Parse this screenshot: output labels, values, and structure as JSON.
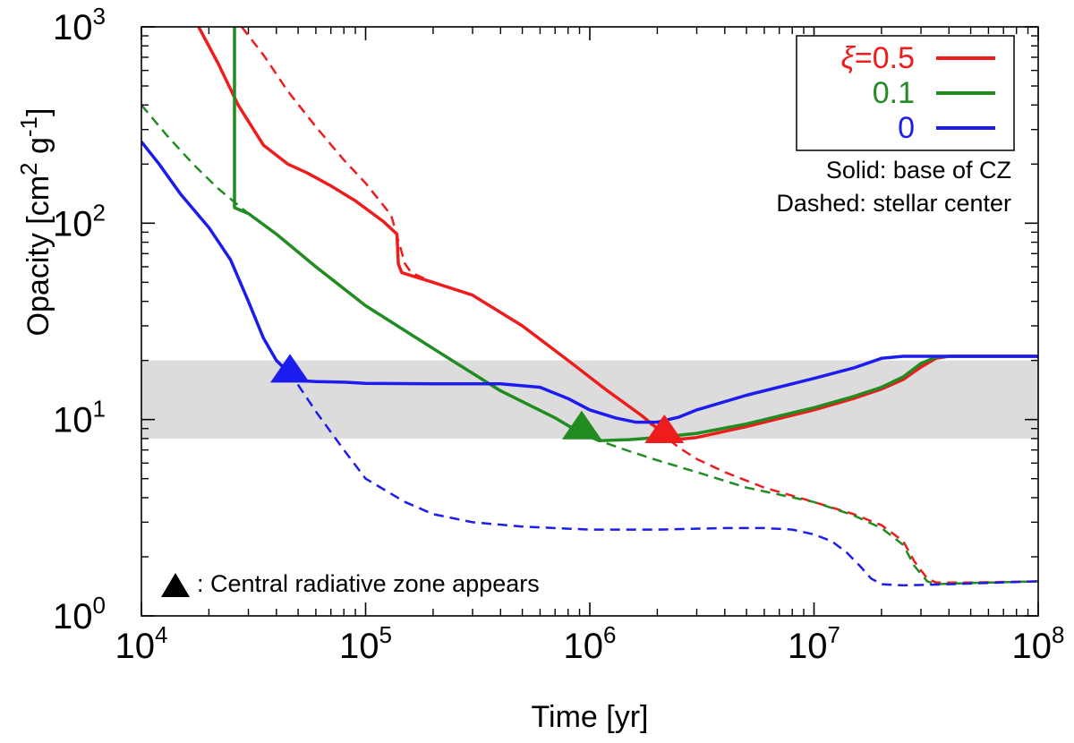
{
  "chart_data": {
    "type": "line",
    "xlabel": "Time [yr]",
    "ylabel_main": "Opacity [cm",
    "ylabel_sup1": "2",
    "ylabel_mid": " g",
    "ylabel_sup2": "-1",
    "ylabel_end": "]",
    "xscale": "log",
    "yscale": "log",
    "xlim": [
      10000,
      100000000
    ],
    "ylim": [
      1,
      1000
    ],
    "grid": false,
    "legend_position": "top-right",
    "x_ticks": [
      {
        "base": "10",
        "exp": "4",
        "value": 10000
      },
      {
        "base": "10",
        "exp": "5",
        "value": 100000
      },
      {
        "base": "10",
        "exp": "6",
        "value": 1000000
      },
      {
        "base": "10",
        "exp": "7",
        "value": 10000000
      },
      {
        "base": "10",
        "exp": "8",
        "value": 100000000
      }
    ],
    "y_ticks": [
      {
        "base": "10",
        "exp": "0",
        "value": 1
      },
      {
        "base": "10",
        "exp": "1",
        "value": 10
      },
      {
        "base": "10",
        "exp": "2",
        "value": 100
      },
      {
        "base": "10",
        "exp": "3",
        "value": 1000
      }
    ],
    "shaded_band": {
      "y0": 8,
      "y1": 20,
      "color": "#dcdcdc"
    },
    "legend": {
      "entries": [
        {
          "symbol": "ξ",
          "label": "=0.5",
          "color": "#ee1c1c"
        },
        {
          "symbol": "",
          "label": "0.1",
          "color": "#228b22"
        },
        {
          "symbol": "",
          "label": "0",
          "color": "#1c1cee"
        }
      ],
      "note_solid": "Solid: base of CZ",
      "note_dashed": "Dashed: stellar center"
    },
    "marker_note": ": Central radiative zone appears",
    "series": [
      {
        "key": "red-solid",
        "color": "#ee1c1c",
        "style": "solid",
        "x": [
          18000,
          22000,
          27000,
          35000,
          45000,
          55000,
          70000,
          90000,
          120000,
          138000,
          140000,
          145000,
          200000,
          300000,
          500000,
          800000,
          1200000,
          1700000,
          2100000,
          2400000,
          3000000,
          5000000,
          10000000,
          15000000,
          20000000,
          25000000,
          30000000,
          35000000,
          40000000,
          100000000
        ],
        "y": [
          1000,
          650,
          400,
          250,
          200,
          180,
          155,
          130,
          102,
          88,
          62,
          56,
          50,
          43,
          30,
          20,
          14,
          10.5,
          8.6,
          7.9,
          8.1,
          9.2,
          11.2,
          12.8,
          14.3,
          16,
          18.5,
          20.5,
          21,
          21
        ]
      },
      {
        "key": "red-dashed",
        "color": "#ee1c1c",
        "style": "dashed",
        "x": [
          28000,
          35000,
          45000,
          60000,
          80000,
          100000,
          130000,
          150000,
          160000,
          200000,
          300000,
          500000,
          800000,
          1200000,
          1700000,
          2100000,
          2500000,
          3000000,
          4000000,
          6000000,
          10000000,
          15000000,
          20000000,
          25000000,
          28000000,
          32000000,
          35000000,
          50000000,
          100000000
        ],
        "y": [
          1000,
          720,
          470,
          310,
          210,
          160,
          110,
          62,
          56,
          50,
          43,
          30,
          20,
          14,
          10.5,
          8.4,
          7.2,
          6.3,
          5.4,
          4.5,
          3.8,
          3.3,
          2.9,
          2.4,
          1.9,
          1.55,
          1.48,
          1.48,
          1.5
        ]
      },
      {
        "key": "green-solid",
        "color": "#228b22",
        "style": "solid",
        "x": [
          26000,
          26000,
          26000,
          30000,
          40000,
          60000,
          100000,
          200000,
          400000,
          700000,
          900000,
          1100000,
          1500000,
          2000000,
          3000000,
          5000000,
          10000000,
          15000000,
          20000000,
          25000000,
          30000000,
          35000000,
          40000000,
          100000000
        ],
        "y": [
          1000,
          120,
          120,
          112,
          88,
          60,
          38,
          23,
          14,
          10.2,
          8.6,
          7.8,
          7.9,
          8.1,
          8.5,
          9.5,
          11.5,
          13.1,
          14.6,
          16.5,
          19.3,
          20.8,
          21,
          21
        ]
      },
      {
        "key": "green-dashed",
        "color": "#228b22",
        "style": "dashed",
        "x": [
          10000,
          13000,
          17000,
          22000,
          26000,
          30000,
          40000,
          60000,
          100000,
          200000,
          400000,
          700000,
          900000,
          1100000,
          1500000,
          2000000,
          3000000,
          5000000,
          10000000,
          15000000,
          20000000,
          25000000,
          28000000,
          32000000,
          35000000,
          50000000,
          100000000
        ],
        "y": [
          400,
          280,
          200,
          150,
          128,
          112,
          88,
          60,
          38,
          23,
          14,
          10.2,
          8.6,
          7.8,
          6.9,
          6.2,
          5.4,
          4.5,
          3.8,
          3.25,
          2.8,
          2.3,
          1.8,
          1.5,
          1.45,
          1.47,
          1.5
        ]
      },
      {
        "key": "blue-solid",
        "color": "#1c1cee",
        "style": "solid",
        "x": [
          10000,
          12000,
          15000,
          20000,
          25000,
          30000,
          35000,
          40000,
          45000,
          50000,
          60000,
          80000,
          100000,
          200000,
          400000,
          600000,
          800000,
          1000000,
          1300000,
          1600000,
          2000000,
          2500000,
          3000000,
          5000000,
          10000000,
          15000000,
          20000000,
          25000000,
          30000000,
          100000000
        ],
        "y": [
          260,
          200,
          140,
          95,
          65,
          40,
          26,
          20,
          17.5,
          15.8,
          15.6,
          15.5,
          15.3,
          15.2,
          15.2,
          14.6,
          12.8,
          11.2,
          10.2,
          9.7,
          9.7,
          10.3,
          11.2,
          13.3,
          16.2,
          18.3,
          20.5,
          21,
          21,
          21
        ]
      },
      {
        "key": "blue-dashed",
        "color": "#1c1cee",
        "style": "dashed",
        "x": [
          45000,
          50000,
          60000,
          80000,
          100000,
          150000,
          200000,
          300000,
          500000,
          800000,
          1000000,
          2000000,
          4000000,
          6000000,
          8000000,
          10000000,
          12000000,
          14000000,
          16000000,
          18000000,
          20000000,
          25000000,
          40000000,
          100000000
        ],
        "y": [
          17.5,
          15,
          11,
          7,
          5,
          3.8,
          3.3,
          3,
          2.85,
          2.78,
          2.75,
          2.75,
          2.8,
          2.8,
          2.75,
          2.6,
          2.4,
          2.1,
          1.8,
          1.55,
          1.45,
          1.43,
          1.45,
          1.5
        ]
      }
    ],
    "markers": [
      {
        "key": "blue-marker",
        "x": 46000,
        "y": 17.5,
        "color": "#1c1cee"
      },
      {
        "key": "green-marker",
        "x": 920000,
        "y": 9.0,
        "color": "#228b22"
      },
      {
        "key": "red-marker",
        "x": 2150000,
        "y": 8.6,
        "color": "#ee1c1c"
      }
    ]
  }
}
